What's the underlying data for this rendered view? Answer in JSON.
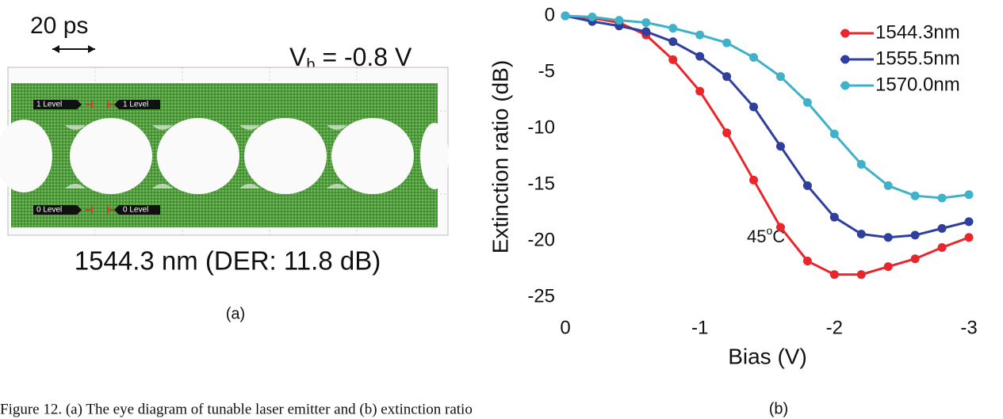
{
  "eye": {
    "scale_label": "20 ps",
    "bias_symbol": "V",
    "bias_subscript": "b",
    "bias_value": " = -0.8 V",
    "level_markers": [
      "1 Level",
      "1 Level",
      "0 Level",
      "0 Level"
    ],
    "caption": "1544.3 nm (DER: 11.8 dB)",
    "panel_label": "(a)"
  },
  "chart_data": {
    "type": "line",
    "xlabel": "Bias (V)",
    "ylabel": "Extinction ratio (dB)",
    "annotation": {
      "value": "45",
      "superscript": "o",
      "unit": "C"
    },
    "panel_label": "(b)",
    "x": [
      0,
      -0.2,
      -0.4,
      -0.6,
      -0.8,
      -1.0,
      -1.2,
      -1.4,
      -1.6,
      -1.8,
      -2.0,
      -2.2,
      -2.4,
      -2.6,
      -2.8,
      -3.0
    ],
    "xlim": [
      0,
      -3
    ],
    "xticks": [
      0,
      -1,
      -2,
      -3
    ],
    "ylim": [
      0,
      -25
    ],
    "yticks": [
      0,
      -5,
      -10,
      -15,
      -20,
      -25
    ],
    "legend": "upper right",
    "series": [
      {
        "name": "1544.3nm",
        "color": "#e8262b",
        "values": [
          0,
          -0.2,
          -0.6,
          -1.7,
          -3.9,
          -6.7,
          -10.4,
          -14.6,
          -18.8,
          -21.8,
          -23.0,
          -23.0,
          -22.3,
          -21.6,
          -20.6,
          -19.7
        ]
      },
      {
        "name": "1555.5nm",
        "color": "#2e3f9e",
        "values": [
          0,
          -0.5,
          -0.9,
          -1.4,
          -2.3,
          -3.6,
          -5.4,
          -8.1,
          -11.6,
          -15.1,
          -17.9,
          -19.4,
          -19.7,
          -19.5,
          -18.9,
          -18.3
        ]
      },
      {
        "name": "1570.0nm",
        "color": "#3fb1c9",
        "values": [
          0,
          -0.1,
          -0.4,
          -0.6,
          -1.1,
          -1.7,
          -2.4,
          -3.7,
          -5.4,
          -7.7,
          -10.5,
          -13.2,
          -15.1,
          -16.0,
          -16.2,
          -15.9
        ]
      }
    ]
  },
  "caption": "Figure 12. (a) The eye diagram of tunable laser emitter and (b) extinction ratio"
}
